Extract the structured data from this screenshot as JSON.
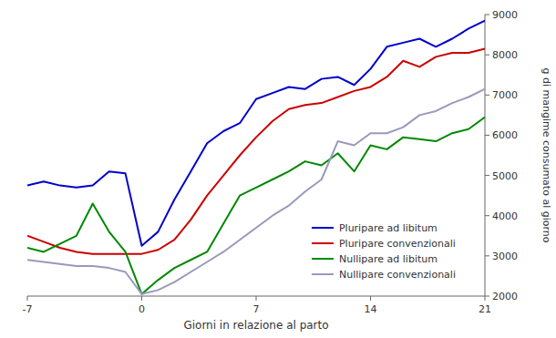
{
  "chart_data": {
    "type": "line",
    "xlabel": "Giorni in relazione al parto",
    "ylabel": "g di mangime consumato al giorno",
    "x": [
      -7,
      -6,
      -5,
      -4,
      -3,
      -2,
      -1,
      0,
      1,
      2,
      3,
      4,
      5,
      6,
      7,
      8,
      9,
      10,
      11,
      12,
      13,
      14,
      15,
      16,
      17,
      18,
      19,
      20,
      21
    ],
    "series": [
      {
        "name": "Pluripare ad libitum",
        "color": "#0000CC",
        "values": [
          4750,
          4850,
          4750,
          4700,
          4750,
          5100,
          5050,
          3250,
          3600,
          4400,
          5100,
          5800,
          6100,
          6300,
          6900,
          7050,
          7200,
          7150,
          7400,
          7450,
          7250,
          7650,
          8200,
          8300,
          8400,
          8200,
          8400,
          8650,
          8850
        ]
      },
      {
        "name": "Pluripare convenzionali",
        "color": "#CC0000",
        "values": [
          3500,
          3350,
          3200,
          3100,
          3050,
          3050,
          3050,
          3050,
          3150,
          3400,
          3900,
          4500,
          5000,
          5500,
          5950,
          6350,
          6650,
          6750,
          6800,
          6950,
          7100,
          7200,
          7450,
          7850,
          7700,
          7950,
          8050,
          8050,
          8150
        ]
      },
      {
        "name": "Nullipare ad libitum",
        "color": "#008800",
        "values": [
          3200,
          3100,
          3300,
          3500,
          4300,
          3600,
          3100,
          2050,
          2400,
          2700,
          2900,
          3100,
          3800,
          4500,
          4700,
          4900,
          5100,
          5350,
          5250,
          5550,
          5100,
          5750,
          5650,
          5950,
          5900,
          5850,
          6050,
          6150,
          6450
        ]
      },
      {
        "name": "Nullipare convenzionali",
        "color": "#9999BB",
        "values": [
          2900,
          2850,
          2800,
          2750,
          2750,
          2700,
          2600,
          2050,
          2150,
          2350,
          2600,
          2850,
          3100,
          3400,
          3700,
          4000,
          4250,
          4600,
          4900,
          5850,
          5750,
          6050,
          6050,
          6200,
          6500,
          6600,
          6800,
          6950,
          7150
        ]
      }
    ],
    "xlim": [
      -7,
      21
    ],
    "ylim": [
      2000,
      9000
    ],
    "xticks": [
      -7,
      0,
      7,
      14,
      21
    ],
    "yticks": [
      2000,
      3000,
      4000,
      5000,
      6000,
      7000,
      8000,
      9000
    ],
    "legend": "lower right"
  }
}
